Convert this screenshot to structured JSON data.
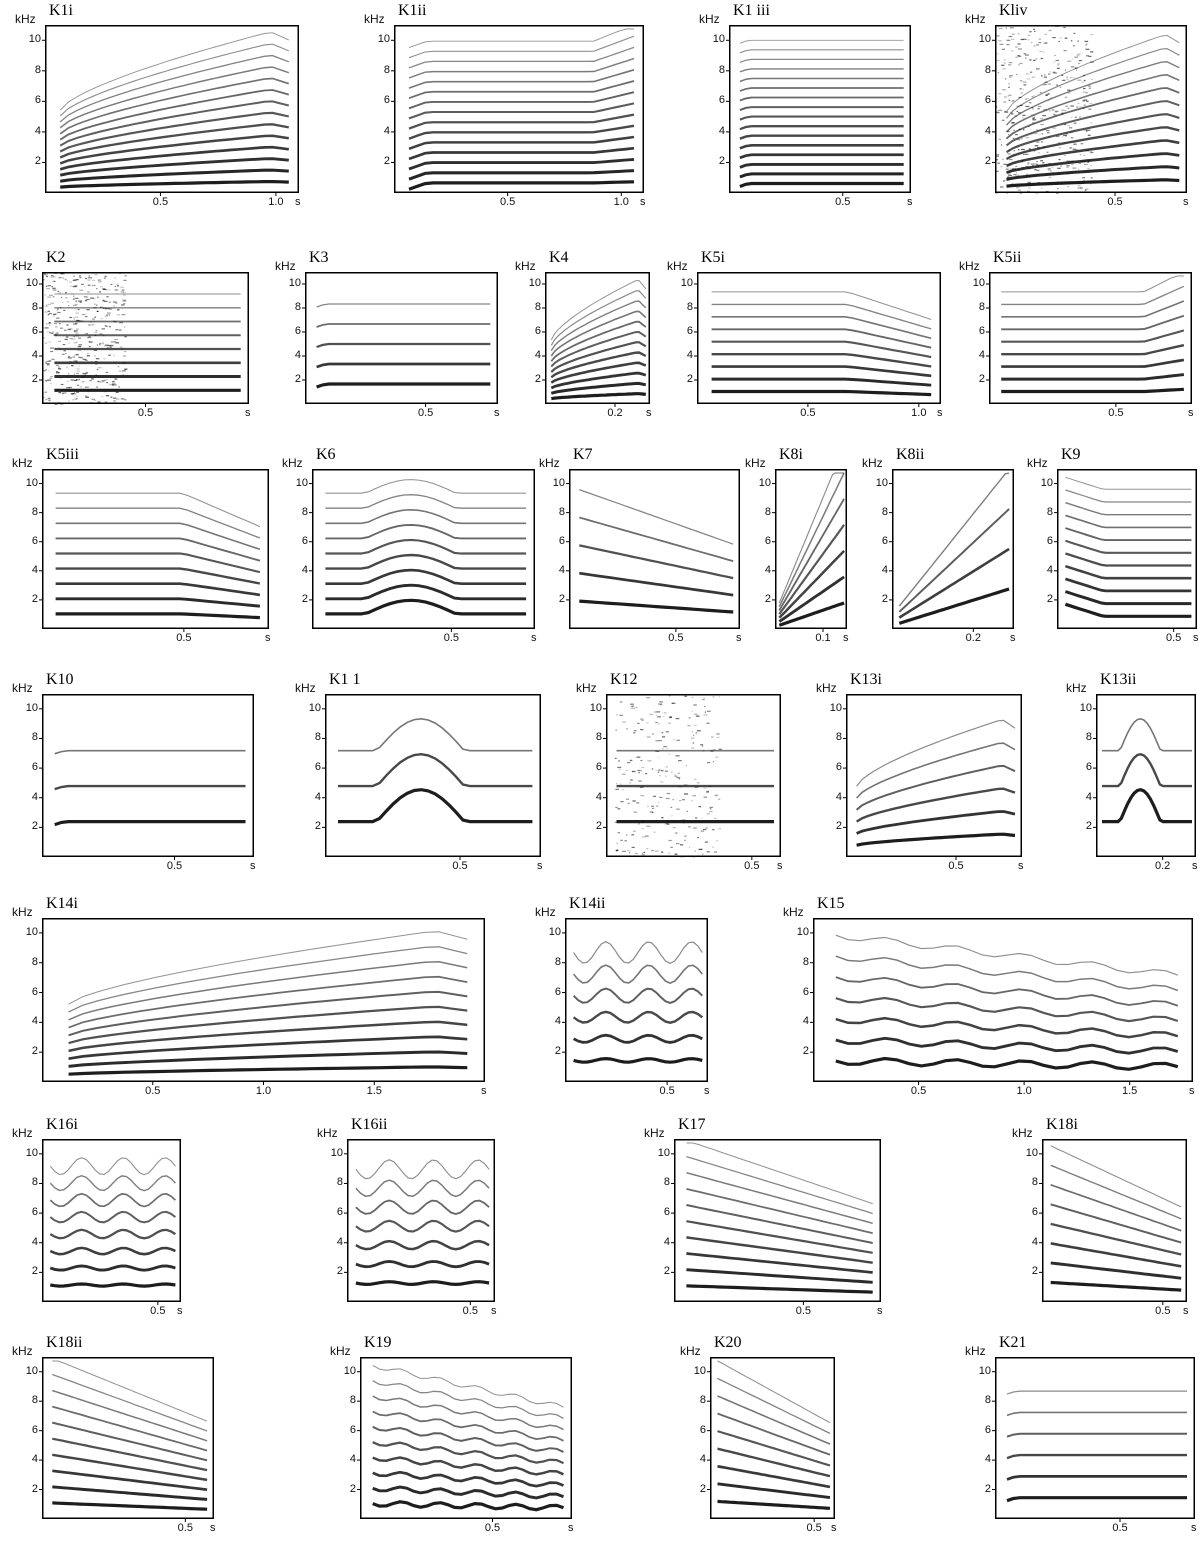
{
  "figure": {
    "y_unit": "kHz",
    "x_unit": "s",
    "panels": [
      {
        "id": "K1i",
        "label": "K1i",
        "yticks": [
          "2",
          "4",
          "6",
          "8",
          "10"
        ],
        "xticks": [
          "0.5",
          "1.0"
        ],
        "tmax": 1.1,
        "style": "rising",
        "n": 14
      },
      {
        "id": "K1ii",
        "label": "K1ii",
        "yticks": [
          "2",
          "4",
          "6",
          "8",
          "10"
        ],
        "xticks": [
          "0.5",
          "1.0"
        ],
        "tmax": 1.1,
        "style": "flat_tail_up",
        "n": 15
      },
      {
        "id": "K1iii",
        "label": "K1 iii",
        "yticks": [
          "2",
          "4",
          "6",
          "8",
          "10"
        ],
        "xticks": [
          "0.5"
        ],
        "tmax": 0.8,
        "style": "flat",
        "n": 16
      },
      {
        "id": "K1iv",
        "label": "Kliv",
        "yticks": [
          "2",
          "4",
          "6",
          "8",
          "10"
        ],
        "xticks": [
          "0.5"
        ],
        "tmax": 0.8,
        "style": "rising_noise",
        "n": 12
      },
      {
        "id": "K2",
        "label": "K2",
        "yticks": [
          "2",
          "4",
          "6",
          "8",
          "10"
        ],
        "xticks": [
          "0.5"
        ],
        "tmax": 1.0,
        "style": "noise_block",
        "n": 8
      },
      {
        "id": "K3",
        "label": "K3",
        "yticks": [
          "2",
          "4",
          "6",
          "8",
          "10"
        ],
        "xticks": [
          "0.5"
        ],
        "tmax": 0.8,
        "style": "flat_sparse",
        "n": 5
      },
      {
        "id": "K4",
        "label": "K4",
        "yticks": [
          "2",
          "4",
          "6",
          "8",
          "10"
        ],
        "xticks": [
          "0.2"
        ],
        "tmax": 0.3,
        "style": "rising_short",
        "n": 12
      },
      {
        "id": "K5i",
        "label": "K5i",
        "yticks": [
          "2",
          "4",
          "6",
          "8",
          "10"
        ],
        "xticks": [
          "0.5",
          "1.0"
        ],
        "tmax": 1.1,
        "style": "plateau_drop",
        "n": 9
      },
      {
        "id": "K5ii",
        "label": "K5ii",
        "yticks": [
          "2",
          "4",
          "6",
          "8",
          "10"
        ],
        "xticks": [
          "0.5"
        ],
        "tmax": 0.8,
        "style": "plateau_rise",
        "n": 9
      },
      {
        "id": "K5iii",
        "label": "K5iii",
        "yticks": [
          "2",
          "4",
          "6",
          "8",
          "10"
        ],
        "xticks": [
          "0.5"
        ],
        "tmax": 0.8,
        "style": "plateau_drop",
        "n": 9
      },
      {
        "id": "K6",
        "label": "K6",
        "yticks": [
          "2",
          "4",
          "6",
          "8",
          "10"
        ],
        "xticks": [
          "0.5"
        ],
        "tmax": 0.8,
        "style": "hump",
        "n": 9
      },
      {
        "id": "K7",
        "label": "K7",
        "yticks": [
          "2",
          "4",
          "6",
          "8",
          "10"
        ],
        "xticks": [
          "0.5"
        ],
        "tmax": 0.8,
        "style": "falling",
        "n": 5
      },
      {
        "id": "K8i",
        "label": "K8i",
        "yticks": [
          "2",
          "4",
          "6",
          "8",
          "10"
        ],
        "xticks": [
          "0.1"
        ],
        "tmax": 0.15,
        "style": "steep",
        "n": 7
      },
      {
        "id": "K8ii",
        "label": "K8ii",
        "yticks": [
          "2",
          "4",
          "6",
          "8",
          "10"
        ],
        "xticks": [
          "0.2"
        ],
        "tmax": 0.3,
        "style": "steep",
        "n": 4
      },
      {
        "id": "K9",
        "label": "K9",
        "yticks": [
          "2",
          "4",
          "6",
          "8",
          "10"
        ],
        "xticks": [
          "0.5"
        ],
        "tmax": 0.6,
        "style": "drop_flat",
        "n": 11
      },
      {
        "id": "K10",
        "label": "K10",
        "yticks": [
          "2",
          "4",
          "6",
          "8",
          "10"
        ],
        "xticks": [
          "0.5"
        ],
        "tmax": 0.8,
        "style": "flat_sparse",
        "n": 3
      },
      {
        "id": "K11",
        "label": "K1 1",
        "yticks": [
          "2",
          "4",
          "6",
          "8",
          "10"
        ],
        "xticks": [
          "0.5"
        ],
        "tmax": 0.8,
        "style": "hump",
        "n": 3
      },
      {
        "id": "K12",
        "label": "K12",
        "yticks": [
          "2",
          "4",
          "6",
          "8",
          "10"
        ],
        "xticks": [
          "0.5"
        ],
        "tmax": 0.6,
        "style": "pulse",
        "n": 3
      },
      {
        "id": "K13i",
        "label": "K13i",
        "yticks": [
          "2",
          "4",
          "6",
          "8",
          "10"
        ],
        "xticks": [
          "0.5"
        ],
        "tmax": 0.8,
        "style": "rising",
        "n": 6
      },
      {
        "id": "K13ii",
        "label": "K13ii",
        "yticks": [
          "2",
          "4",
          "6",
          "8",
          "10"
        ],
        "xticks": [
          "0.2"
        ],
        "tmax": 0.3,
        "style": "hump",
        "n": 3
      },
      {
        "id": "K14i",
        "label": "K14i",
        "yticks": [
          "2",
          "4",
          "6",
          "8",
          "10"
        ],
        "xticks": [
          "0.5",
          "1.0",
          "1.5"
        ],
        "tmax": 2.0,
        "style": "rising",
        "n": 10
      },
      {
        "id": "K14ii",
        "label": "K14ii",
        "yticks": [
          "2",
          "4",
          "6",
          "8",
          "10"
        ],
        "xticks": [
          "0.5"
        ],
        "tmax": 0.7,
        "style": "wavy",
        "n": 6
      },
      {
        "id": "K15",
        "label": "K15",
        "yticks": [
          "2",
          "4",
          "6",
          "8",
          "10"
        ],
        "xticks": [
          "0.5",
          "1.0",
          "1.5"
        ],
        "tmax": 1.8,
        "style": "wavy_fall",
        "n": 7
      },
      {
        "id": "K16i",
        "label": "K16i",
        "yticks": [
          "2",
          "4",
          "6",
          "8",
          "10"
        ],
        "xticks": [
          "0.5"
        ],
        "tmax": 0.6,
        "style": "wavy",
        "n": 8
      },
      {
        "id": "K16ii",
        "label": "K16ii",
        "yticks": [
          "2",
          "4",
          "6",
          "8",
          "10"
        ],
        "xticks": [
          "0.5"
        ],
        "tmax": 0.6,
        "style": "wavy_hump",
        "n": 7
      },
      {
        "id": "K17",
        "label": "K17",
        "yticks": [
          "2",
          "4",
          "6",
          "8",
          "10"
        ],
        "xticks": [
          "0.5"
        ],
        "tmax": 0.8,
        "style": "falling",
        "n": 10
      },
      {
        "id": "K18i",
        "label": "K18i",
        "yticks": [
          "2",
          "4",
          "6",
          "8",
          "10"
        ],
        "xticks": [
          "0.5"
        ],
        "tmax": 0.6,
        "style": "falling",
        "n": 8
      },
      {
        "id": "K18ii",
        "label": "K18ii",
        "yticks": [
          "2",
          "4",
          "6",
          "8",
          "10"
        ],
        "xticks": [
          "0.5"
        ],
        "tmax": 0.6,
        "style": "falling",
        "n": 10
      },
      {
        "id": "K19",
        "label": "K19",
        "yticks": [
          "2",
          "4",
          "6",
          "8",
          "10"
        ],
        "xticks": [
          "0.5"
        ],
        "tmax": 0.8,
        "style": "wavy_fall",
        "n": 10
      },
      {
        "id": "K20",
        "label": "K20",
        "yticks": [
          "2",
          "4",
          "6",
          "8",
          "10"
        ],
        "xticks": [
          "0.5"
        ],
        "tmax": 0.6,
        "style": "falling",
        "n": 9
      },
      {
        "id": "K21",
        "label": "K21",
        "yticks": [
          "2",
          "4",
          "6",
          "8",
          "10"
        ],
        "xticks": [
          "0.5"
        ],
        "tmax": 0.8,
        "style": "flat_sparse",
        "n": 6
      }
    ]
  }
}
